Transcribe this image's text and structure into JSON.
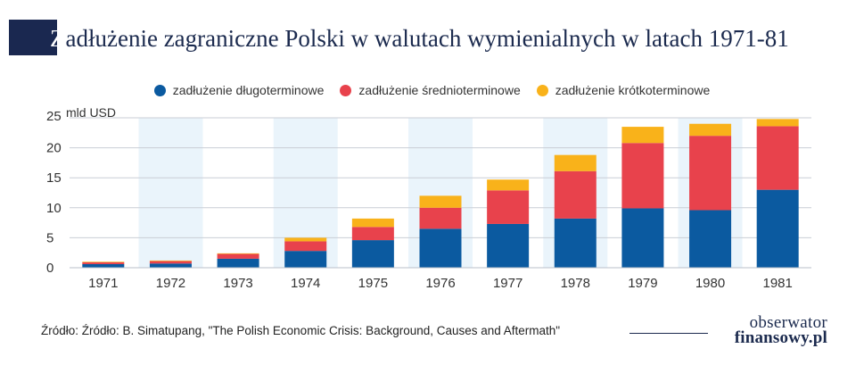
{
  "title": {
    "first_letter": "Z",
    "rest": "adłużenie zagraniczne Polski w walutach wymienialnych w latach 1971-81"
  },
  "unit_label": "mld USD",
  "source": "Źródło: Źródło: B. Simatupang, \"The Polish Economic Crisis: Background, Causes and Aftermath\"",
  "logo": {
    "line1": "obserwator",
    "line2": "finansowy.pl"
  },
  "colors": {
    "long": "#0b5aa0",
    "medium": "#e8424c",
    "short": "#f9b21a",
    "band": "#eaf4fb"
  },
  "chart_data": {
    "type": "bar",
    "stacked": true,
    "categories": [
      "1971",
      "1972",
      "1973",
      "1974",
      "1975",
      "1976",
      "1977",
      "1978",
      "1979",
      "1980",
      "1981"
    ],
    "series": [
      {
        "name": "zadłużenie długoterminowe",
        "color": "#0b5aa0",
        "values": [
          0.6,
          0.7,
          1.5,
          2.8,
          4.6,
          6.5,
          7.3,
          8.2,
          9.9,
          9.6,
          13.0
        ]
      },
      {
        "name": "zadłużenie średnioterminowe",
        "color": "#e8424c",
        "values": [
          0.3,
          0.4,
          0.8,
          1.6,
          2.2,
          3.5,
          5.6,
          7.9,
          10.9,
          12.4,
          10.6
        ]
      },
      {
        "name": "zadłużenie krótkoterminowe",
        "color": "#f9b21a",
        "values": [
          0.1,
          0.1,
          0.1,
          0.6,
          1.4,
          2.0,
          1.8,
          2.7,
          2.7,
          2.0,
          1.2
        ]
      }
    ],
    "y_ticks": [
      0,
      5,
      10,
      15,
      20,
      25
    ],
    "ylim": [
      0,
      25
    ],
    "ylabel": "mld USD",
    "grid": true,
    "legend_position": "top"
  }
}
